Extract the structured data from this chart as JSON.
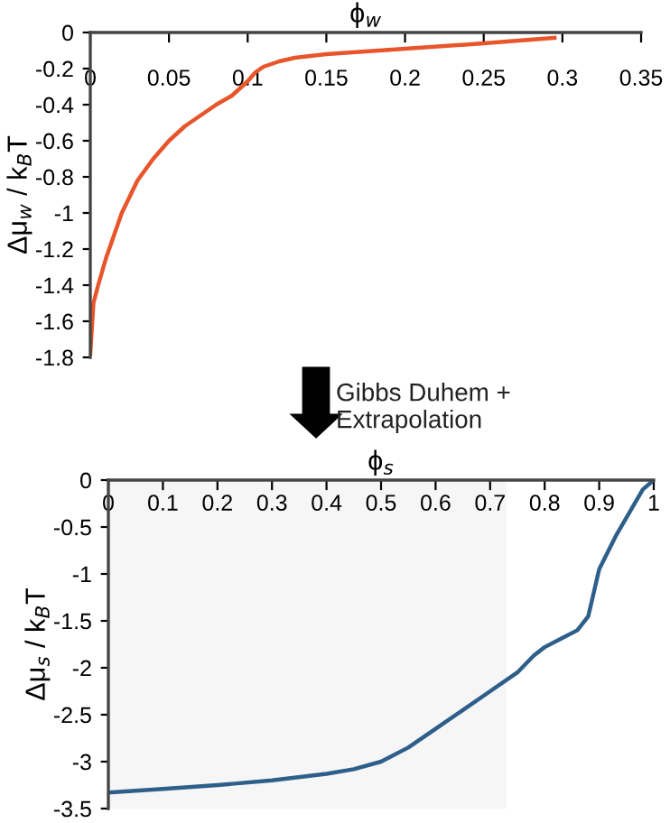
{
  "chart_data": [
    {
      "type": "line",
      "xlabel": "ϕ$_{w}$",
      "ylabel": "Δμ$_{w}$ / k$_{B}$T",
      "xlim": [
        0,
        0.35
      ],
      "xticks": [
        0,
        0.05,
        0.1,
        0.15,
        0.2,
        0.25,
        0.3,
        0.35
      ],
      "ylim": [
        -1.8,
        0
      ],
      "yticks": [
        0,
        -0.2,
        -0.4,
        -0.6,
        -0.8,
        -1,
        -1.2,
        -1.4,
        -1.6,
        -1.8
      ],
      "grid": false,
      "legend": false,
      "marker": "none",
      "line_style": "solid",
      "annotations": [
        "Gibbs Duhem +\nExtrapolation"
      ],
      "series": [
        {
          "color": "#e8552a",
          "x": [
            0,
            0.002,
            0.005,
            0.01,
            0.02,
            0.03,
            0.04,
            0.05,
            0.06,
            0.07,
            0.08,
            0.09,
            0.1,
            0.105,
            0.11,
            0.12,
            0.13,
            0.15,
            0.2,
            0.25,
            0.295
          ],
          "values": [
            -1.78,
            -1.5,
            -1.4,
            -1.25,
            -1.0,
            -0.82,
            -0.7,
            -0.6,
            -0.52,
            -0.46,
            -0.4,
            -0.35,
            -0.27,
            -0.22,
            -0.19,
            -0.16,
            -0.14,
            -0.12,
            -0.09,
            -0.06,
            -0.03
          ]
        }
      ]
    },
    {
      "type": "line",
      "xlabel": "ϕ$_{s}$",
      "ylabel": "Δμ$_{s}$ / k$_{B}$T",
      "xlim": [
        0,
        1
      ],
      "xticks": [
        0,
        0.1,
        0.2,
        0.3,
        0.4,
        0.5,
        0.6,
        0.7,
        0.8,
        0.9,
        1
      ],
      "ylim": [
        -3.5,
        0
      ],
      "yticks": [
        0,
        -0.5,
        -1,
        -1.5,
        -2,
        -2.5,
        -3,
        -3.5
      ],
      "grid": false,
      "legend": false,
      "marker": "none",
      "line_style": "solid",
      "bands": [
        {
          "axis": "x",
          "from": 0,
          "to": 0.73,
          "color": "#f6f6f6"
        }
      ],
      "series": [
        {
          "color": "#2e5f8a",
          "x": [
            0,
            0.1,
            0.2,
            0.3,
            0.4,
            0.45,
            0.5,
            0.55,
            0.6,
            0.65,
            0.7,
            0.75,
            0.78,
            0.8,
            0.83,
            0.86,
            0.88,
            0.89,
            0.9,
            0.93,
            0.96,
            0.98,
            1.0
          ],
          "values": [
            -3.33,
            -3.29,
            -3.25,
            -3.2,
            -3.13,
            -3.08,
            -3.0,
            -2.85,
            -2.65,
            -2.45,
            -2.25,
            -2.05,
            -1.87,
            -1.78,
            -1.69,
            -1.6,
            -1.45,
            -1.2,
            -0.95,
            -0.6,
            -0.3,
            -0.1,
            0
          ]
        }
      ]
    }
  ]
}
